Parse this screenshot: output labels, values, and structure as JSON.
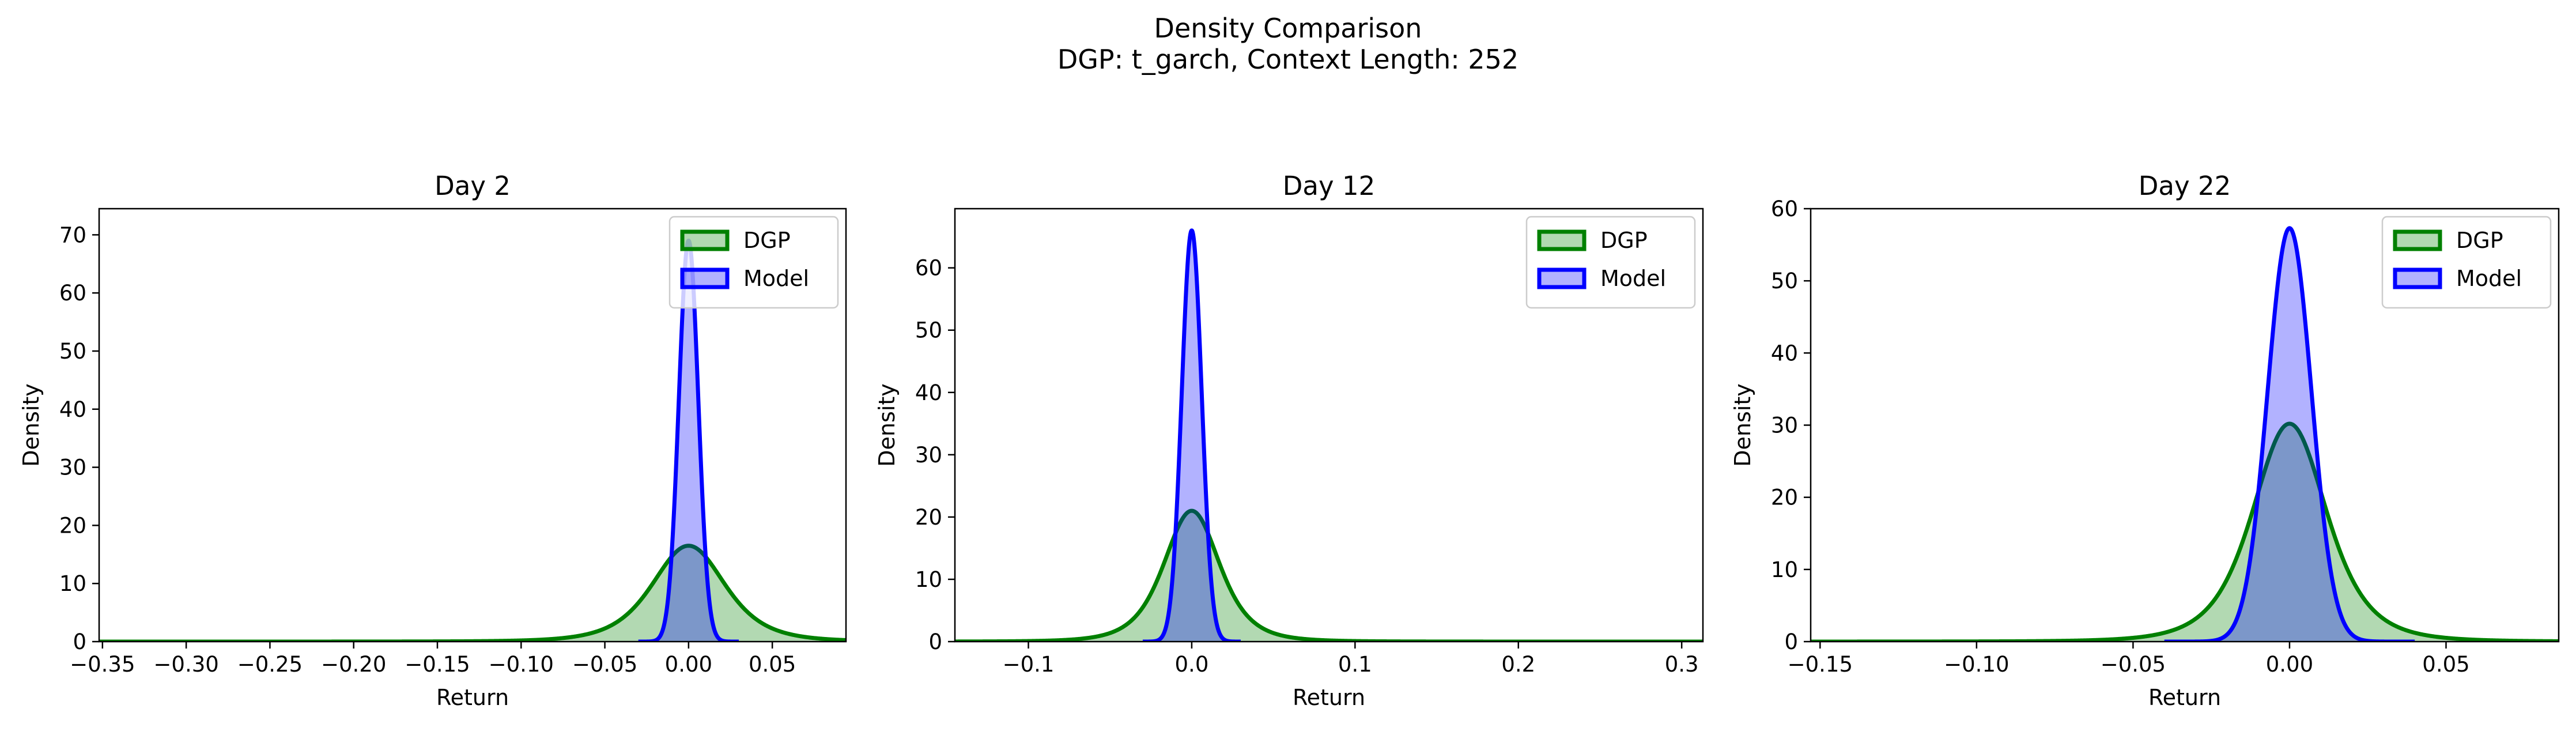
{
  "figure": {
    "title": "Density Comparison",
    "subtitle": "DGP: t_garch, Context Length: 252"
  },
  "colors": {
    "dgp_line": "#008000",
    "dgp_fill": "#008000",
    "model_line": "#0000ff",
    "model_fill": "#0000ff",
    "axes": "#000000",
    "background": "#ffffff"
  },
  "chart_data": [
    {
      "type": "area",
      "title": "Day 2",
      "xlabel": "Return",
      "ylabel": "Density",
      "xlim": [
        -0.352,
        0.094
      ],
      "ylim": [
        0,
        74.5
      ],
      "xticks": [
        -0.35,
        -0.3,
        -0.25,
        -0.2,
        -0.15,
        -0.1,
        -0.05,
        0.0,
        0.05
      ],
      "xtick_labels": [
        "−0.35",
        "−0.30",
        "−0.25",
        "−0.20",
        "−0.15",
        "−0.10",
        "−0.05",
        "0.00",
        "0.05"
      ],
      "yticks": [
        0,
        10,
        20,
        30,
        40,
        50,
        60,
        70
      ],
      "ytick_labels": [
        "0",
        "10",
        "20",
        "30",
        "40",
        "50",
        "60",
        "70"
      ],
      "legend_position": "top-right",
      "series": [
        {
          "name": "DGP",
          "dist": "t",
          "mean": 0.0,
          "scale": 0.0227,
          "df": 4,
          "peak": 16.5,
          "x_range": [
            -0.352,
            0.094
          ]
        },
        {
          "name": "Model",
          "dist": "normal",
          "mean": 0.0,
          "sd": 0.0058,
          "peak": 69.0,
          "x_range": [
            -0.03,
            0.03
          ]
        }
      ]
    },
    {
      "type": "area",
      "title": "Day 12",
      "xlabel": "Return",
      "ylabel": "Density",
      "xlim": [
        -0.145,
        0.313
      ],
      "ylim": [
        0,
        69.5
      ],
      "xticks": [
        -0.1,
        0.0,
        0.1,
        0.2,
        0.3
      ],
      "xtick_labels": [
        "−0.1",
        "0.0",
        "0.1",
        "0.2",
        "0.3"
      ],
      "yticks": [
        0,
        10,
        20,
        30,
        40,
        50,
        60
      ],
      "ytick_labels": [
        "0",
        "10",
        "20",
        "30",
        "40",
        "50",
        "60"
      ],
      "legend_position": "top-right",
      "series": [
        {
          "name": "DGP",
          "dist": "t",
          "mean": 0.0,
          "scale": 0.0178,
          "df": 4,
          "peak": 21.0,
          "x_range": [
            -0.145,
            0.313
          ]
        },
        {
          "name": "Model",
          "dist": "normal",
          "mean": 0.0,
          "sd": 0.0061,
          "peak": 66.0,
          "x_range": [
            -0.03,
            0.03
          ]
        }
      ]
    },
    {
      "type": "area",
      "title": "Day 22",
      "xlabel": "Return",
      "ylabel": "Density",
      "xlim": [
        -0.153,
        0.086
      ],
      "ylim": [
        0,
        60
      ],
      "xticks": [
        -0.15,
        -0.1,
        -0.05,
        0.0,
        0.05
      ],
      "xtick_labels": [
        "−0.15",
        "−0.10",
        "−0.05",
        "0.00",
        "0.05"
      ],
      "yticks": [
        0,
        10,
        20,
        30,
        40,
        50,
        60
      ],
      "ytick_labels": [
        "0",
        "10",
        "20",
        "30",
        "40",
        "50",
        "60"
      ],
      "legend_position": "top-right",
      "series": [
        {
          "name": "DGP",
          "dist": "t",
          "mean": 0.0,
          "scale": 0.0124,
          "df": 4,
          "peak": 30.2,
          "x_range": [
            -0.153,
            0.086
          ]
        },
        {
          "name": "Model",
          "dist": "normal",
          "mean": 0.0,
          "sd": 0.007,
          "peak": 57.3,
          "x_range": [
            -0.04,
            0.04
          ]
        }
      ]
    }
  ]
}
